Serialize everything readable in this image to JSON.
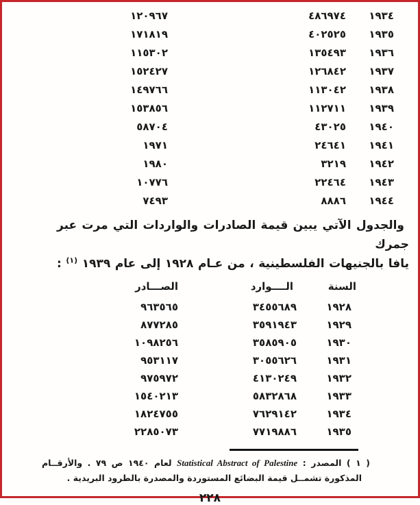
{
  "page": {
    "number": "٢٢٨",
    "border_color": "#c4272b",
    "text_color": "#191919"
  },
  "table1": {
    "rows": [
      {
        "year": "١٩٣٤",
        "imports": "٤٨٦٩٧٤",
        "exports": "١٢٠٩٦٧"
      },
      {
        "year": "١٩٣٥",
        "imports": "٤٠٢٥٢٥",
        "exports": "١٧١٨١٩"
      },
      {
        "year": "١٩٣٦",
        "imports": "١٣٥٤٩٣",
        "exports": "١١٥٣٠٢"
      },
      {
        "year": "١٩٣٧",
        "imports": "١٢٦٨٤٢",
        "exports": "١٥٢٤٢٧"
      },
      {
        "year": "١٩٣٨",
        "imports": "١١٣٠٤٢",
        "exports": "١٤٩٧٦٦"
      },
      {
        "year": "١٩٣٩",
        "imports": "١١٢٧١١",
        "exports": "١٥٣٨٥٦"
      },
      {
        "year": "١٩٤٠",
        "imports": "٤٣٠٢٥",
        "exports": "٥٨٧٠٤"
      },
      {
        "year": "١٩٤١",
        "imports": "٢٤٦٤١",
        "exports": "١٩٧١"
      },
      {
        "year": "١٩٤٢",
        "imports": "٣٢١٩",
        "exports": "١٩٨٠"
      },
      {
        "year": "١٩٤٣",
        "imports": "٢٢٤٦٤",
        "exports": "١٠٧٧٦"
      },
      {
        "year": "١٩٤٤",
        "imports": "٨٨٨٦",
        "exports": "٧٤٩٣"
      }
    ]
  },
  "paragraph": {
    "line1": "والجدول الآتي يبين قيمة الصادرات والواردات التي مرت عبر جمرك",
    "line2_pre": "يافا بالجنيهات الفلسطينية ، من عـام ١٩٢٨ إلى عام ١٩٣٩",
    "note_ref": "(١)",
    "line2_colon": ":"
  },
  "table2": {
    "headers": {
      "year": "السنة",
      "imports": "الــــوارد",
      "exports": "الصـــادر"
    },
    "rows": [
      {
        "year": "١٩٢٨",
        "imports": "٣٤٥٥٦٨٩",
        "exports": "٩٦٣٥٦٥"
      },
      {
        "year": "١٩٢٩",
        "imports": "٣٥٩١٩٤٣",
        "exports": "٨٧٧٢٨٥"
      },
      {
        "year": "١٩٣٠",
        "imports": "٣٥٨٥٩٠٥",
        "exports": "١٠٩٨٢٥٦"
      },
      {
        "year": "١٩٣١",
        "imports": "٣٠٥٥٦٢٦",
        "exports": "٩٥٣١١٧"
      },
      {
        "year": "١٩٣٢",
        "imports": "٤١٣٠٢٤٩",
        "exports": "٩٧٥٩٧٢"
      },
      {
        "year": "١٩٣٣",
        "imports": "٥٨٣٢٨٦٨",
        "exports": "١٥٤٠٢١٣"
      },
      {
        "year": "١٩٣٤",
        "imports": "٧٦٢٩١٤٢",
        "exports": "١٨٢٤٧٥٥"
      },
      {
        "year": "١٩٣٥",
        "imports": "٧٧١٩٨٨٦",
        "exports": "٢٢٨٥٠٧٣"
      }
    ]
  },
  "footnote": {
    "marker": "( ١ )",
    "label": "المصدر :",
    "source": "Statistical Abstract of Palestine",
    "tail": "لعام ١٩٤٠ ص ٧٩ . والأرقــام",
    "line2": "المذكورة تشمــل قيمة البضائع المستوردة والمصدرة بالطرود البريدية ."
  }
}
